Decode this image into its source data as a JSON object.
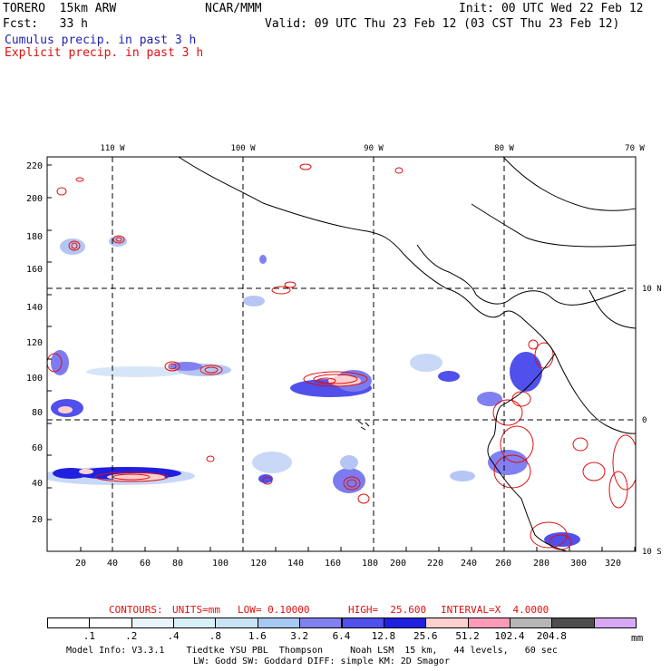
{
  "header": {
    "model": "TORERO  15km ARW",
    "org": "NCAR/MMM",
    "init": "Init: 00 UTC Wed 22 Feb 12",
    "fcst": "Fcst:   33 h",
    "valid": "Valid: 09 UTC Thu 23 Feb 12 (03 CST Thu 23 Feb 12)",
    "cumulus": "Cumulus precip. in past 3 h",
    "explicit": "Explicit precip. in past 3 h"
  },
  "map": {
    "lon_labels": [
      "110 W",
      "100 W",
      "90 W",
      "80 W",
      "70 W"
    ],
    "lat_labels": [
      "10 N",
      "0",
      "10 S"
    ],
    "y_ticks": [
      "220",
      "200",
      "180",
      "160",
      "140",
      "120",
      "100",
      "80",
      "60",
      "40",
      "20"
    ],
    "x_ticks": [
      "20",
      "40",
      "60",
      "80",
      "100",
      "120",
      "140",
      "160",
      "180",
      "200",
      "220",
      "240",
      "260",
      "280",
      "300",
      "320"
    ]
  },
  "contour_info": {
    "contours": "CONTOURS:",
    "units": "UNITS=mm",
    "low": "LOW= 0.10000",
    "high": "HIGH=  25.600",
    "interval": "INTERVAL=X  4.0000"
  },
  "legend": {
    "colors": [
      "#ffffff",
      "#ffffff",
      "#e8f4fa",
      "#d8f0f8",
      "#c8e4f4",
      "#a6c8f2",
      "#8080f0",
      "#5050ec",
      "#2020e0",
      "#ffd0d0",
      "#ff9ab8",
      "#b6b6b6",
      "#4e4e4e",
      "#d8a8f4"
    ],
    "labels": [
      ".1",
      ".2",
      ".4",
      ".8",
      "1.6",
      "3.2",
      "6.4",
      "12.8",
      "25.6",
      "51.2",
      "102.4",
      "204.8"
    ],
    "unit": "mm"
  },
  "footer": {
    "line1": "Model Info: V3.3.1    Tiedtke YSU PBL  Thompson     Noah LSM  15 km,   44 levels,   60 sec",
    "line2": "LW: Godd SW: Goddard DIFF: simple KM: 2D Smagor"
  }
}
